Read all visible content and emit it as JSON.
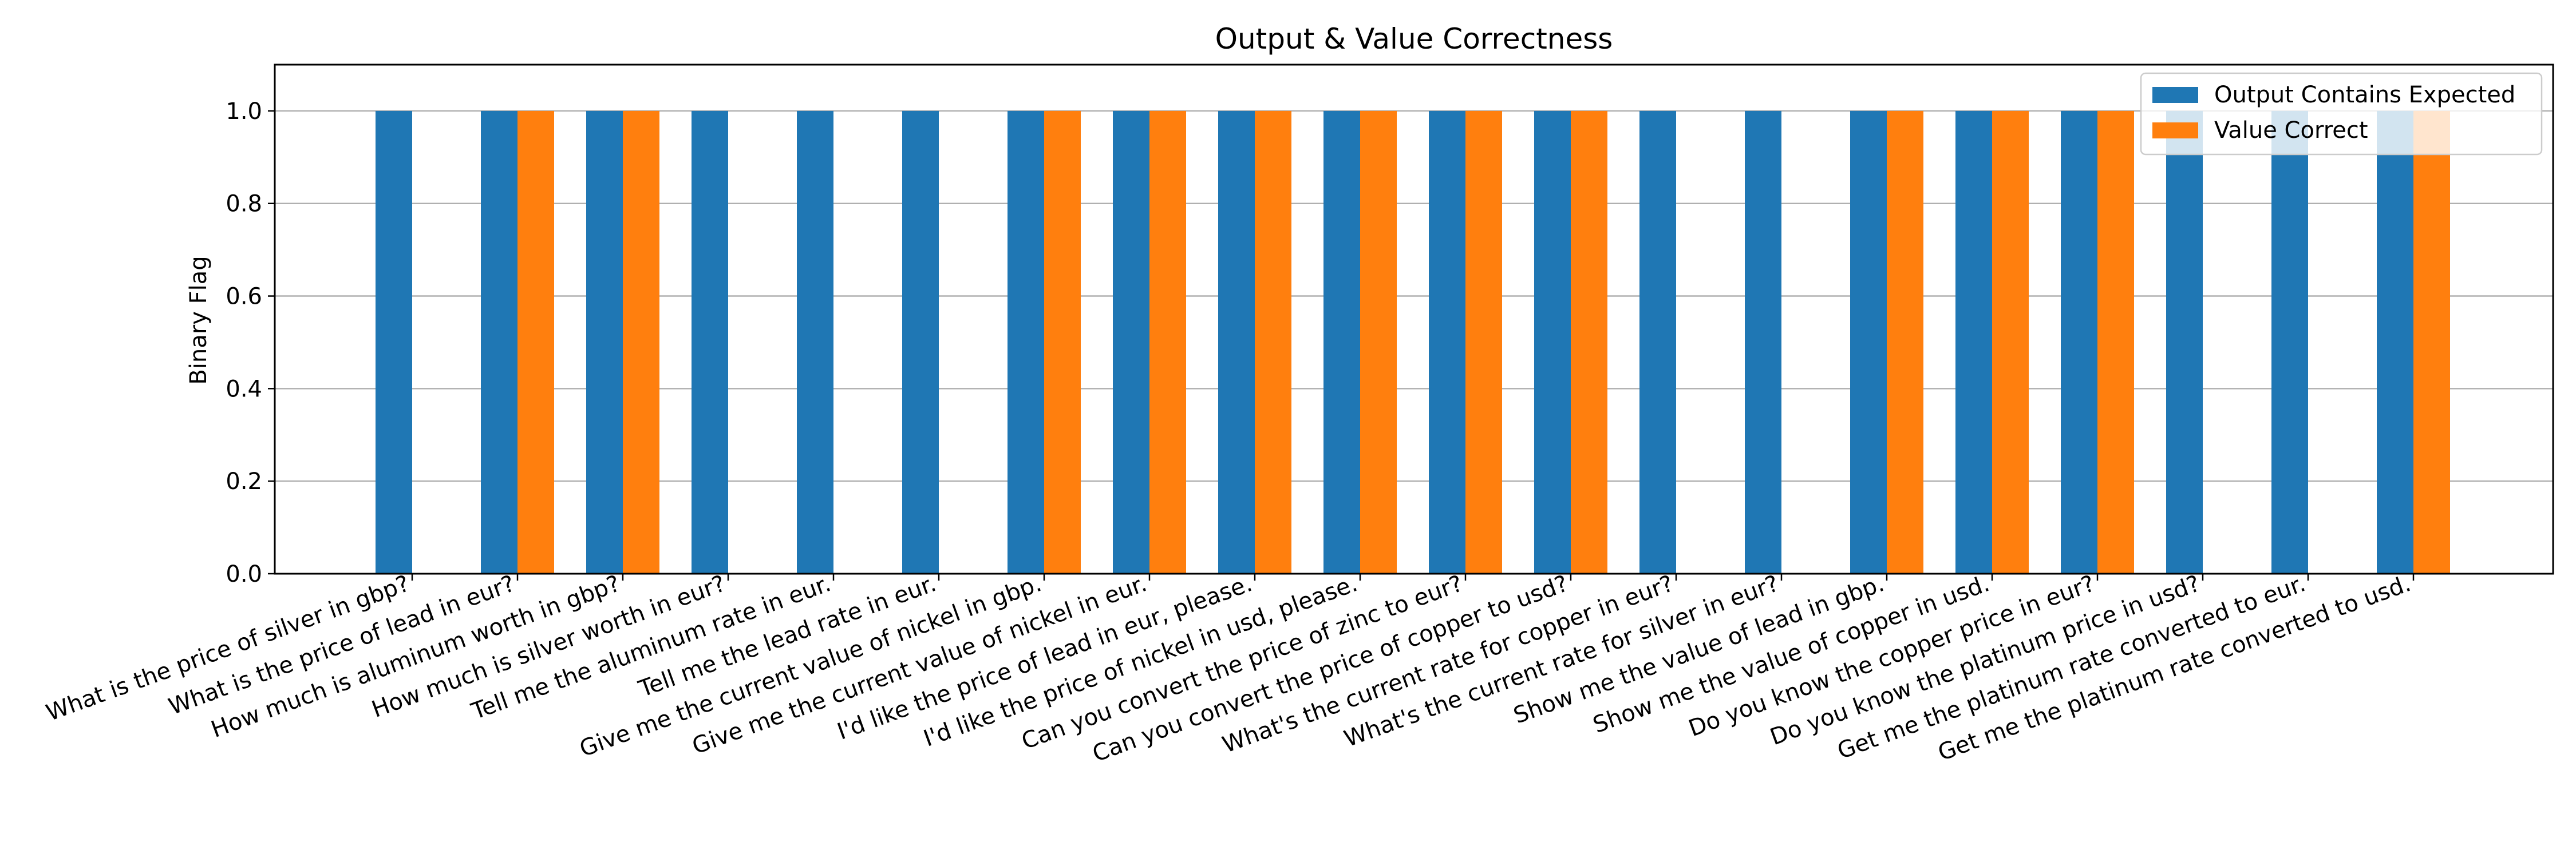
{
  "chart_data": {
    "type": "bar",
    "title": "Output & Value Correctness",
    "xlabel": "",
    "ylabel": "Binary Flag",
    "ylim": [
      0,
      1.1
    ],
    "yticks": [
      "0.0",
      "0.2",
      "0.4",
      "0.6",
      "0.8",
      "1.0"
    ],
    "grid": "y",
    "legend_position": "top-right",
    "categories": [
      "What is the price of silver in gbp?",
      "What is the price of lead in eur?",
      "How much is aluminum worth in gbp?",
      "How much is silver worth in eur?",
      "Tell me the aluminum rate in eur.",
      "Tell me the lead rate in eur.",
      "Give me the current value of nickel in gbp.",
      "Give me the current value of nickel in eur.",
      "I'd like the price of lead in eur, please.",
      "I'd like the price of nickel in usd, please.",
      "Can you convert the price of zinc to eur?",
      "Can you convert the price of copper to usd?",
      "What's the current rate for copper in eur?",
      "What's the current rate for silver in eur?",
      "Show me the value of lead in gbp.",
      "Show me the value of copper in usd.",
      "Do you know the copper price in eur?",
      "Do you know the platinum price in usd?",
      "Get me the platinum rate converted to eur.",
      "Get me the platinum rate converted to usd."
    ],
    "series": [
      {
        "name": "Output Contains Expected",
        "color": "#1f77b4",
        "values": [
          1,
          1,
          1,
          1,
          1,
          1,
          1,
          1,
          1,
          1,
          1,
          1,
          1,
          1,
          1,
          1,
          1,
          1,
          1,
          1
        ]
      },
      {
        "name": "Value Correct",
        "color": "#ff7f0e",
        "values": [
          0,
          1,
          1,
          0,
          0,
          0,
          1,
          1,
          1,
          1,
          1,
          1,
          0,
          0,
          1,
          1,
          1,
          0,
          0,
          1
        ]
      }
    ]
  }
}
